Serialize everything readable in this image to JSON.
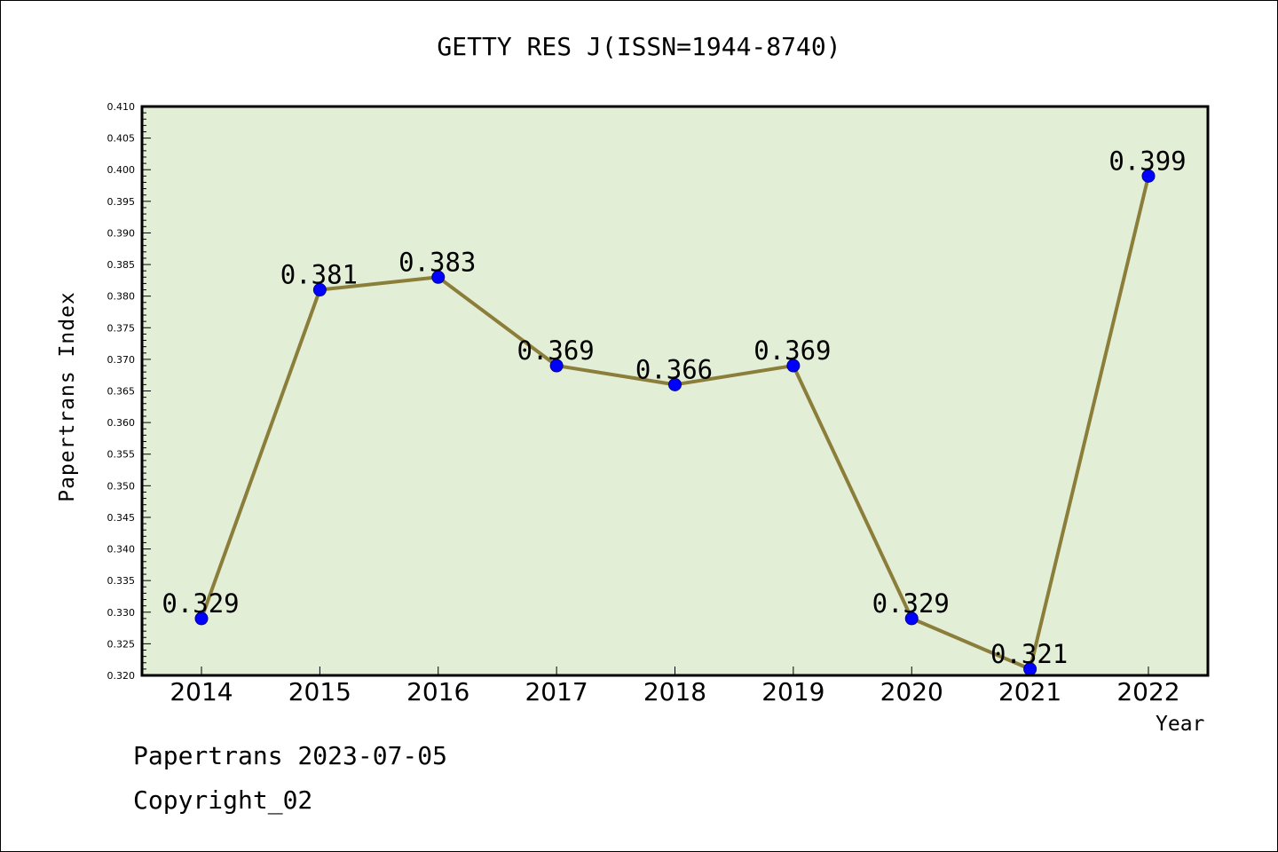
{
  "chart_data": {
    "type": "line",
    "title": "GETTY RES J(ISSN=1944-8740)",
    "xlabel": "Year",
    "ylabel": "Papertrans Index",
    "categories": [
      "2014",
      "2015",
      "2016",
      "2017",
      "2018",
      "2019",
      "2020",
      "2021",
      "2022"
    ],
    "series": [
      {
        "values": [
          0.329,
          0.381,
          0.383,
          0.369,
          0.366,
          0.369,
          0.329,
          0.321,
          0.399
        ]
      }
    ],
    "data_labels": [
      "0.329",
      "0.381",
      "0.383",
      "0.369",
      "0.366",
      "0.369",
      "0.329",
      "0.321",
      "0.399"
    ],
    "ylim": [
      0.32,
      0.41
    ],
    "y_ticks": [
      "0.320",
      "0.325",
      "0.330",
      "0.335",
      "0.340",
      "0.345",
      "0.350",
      "0.355",
      "0.360",
      "0.365",
      "0.370",
      "0.375",
      "0.380",
      "0.385",
      "0.390",
      "0.395",
      "0.400",
      "0.405",
      "0.410"
    ],
    "grid": false,
    "colors": {
      "plot_background": "#e2efd6",
      "line": "#8b7d3a",
      "marker": "#0000ff"
    }
  },
  "footer": {
    "date_text": "Papertrans 2023-07-05",
    "copyright_text": "Copyright_02"
  }
}
